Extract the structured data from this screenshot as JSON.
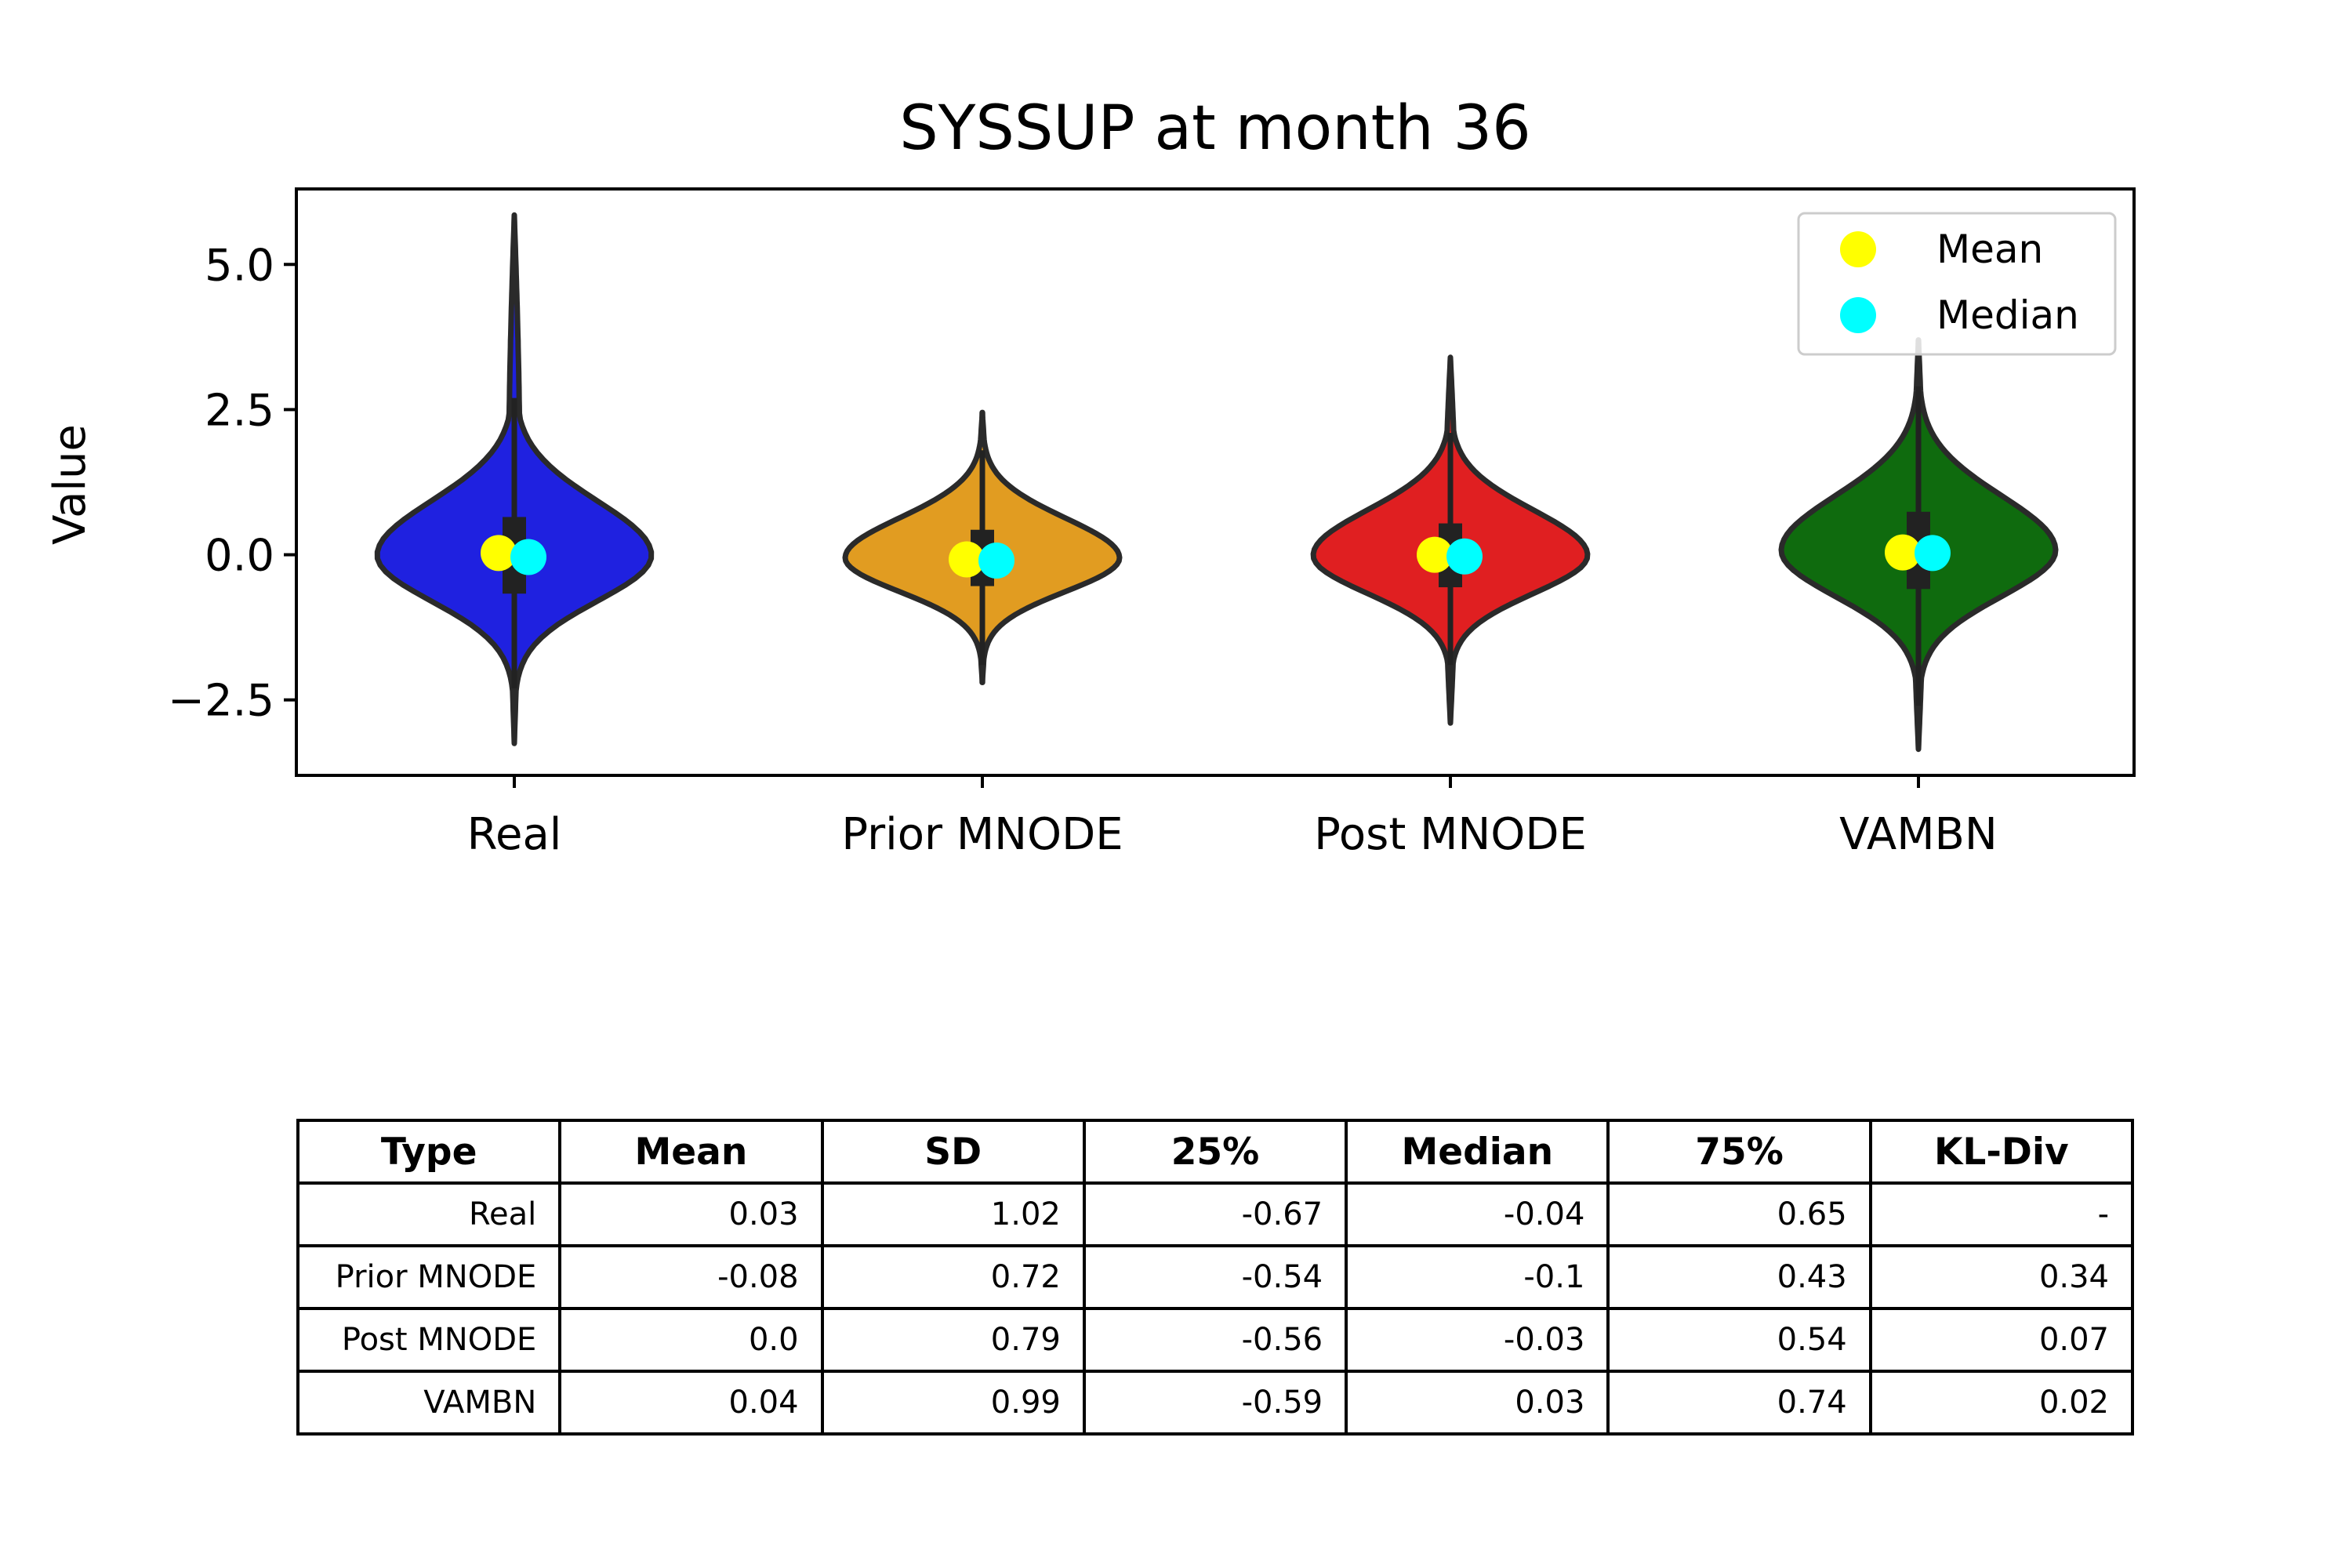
{
  "chart_data": {
    "type": "violin",
    "title": "SYSSUP at month 36",
    "xlabel": "",
    "ylabel": "Value",
    "ylim": [
      -3.8,
      6.3
    ],
    "yticks": [
      5.0,
      2.5,
      0.0,
      -2.5
    ],
    "ytick_labels": [
      "5.0",
      "2.5",
      "0.0",
      "−2.5"
    ],
    "categories": [
      "Real",
      "Prior MNODE",
      "Post MNODE",
      "VAMBN"
    ],
    "series": [
      {
        "category": "Real",
        "color": "#1f21e0",
        "min": -3.25,
        "max": 5.85,
        "q1": -0.67,
        "q3": 0.65,
        "mean": 0.03,
        "median": -0.04,
        "whisker_low": -2.3,
        "whisker_high": 2.7
      },
      {
        "category": "Prior MNODE",
        "color": "#e19c21",
        "min": -2.2,
        "max": 2.45,
        "q1": -0.54,
        "q3": 0.43,
        "mean": -0.08,
        "median": -0.1,
        "whisker_low": -1.9,
        "whisker_high": 1.8
      },
      {
        "category": "Post MNODE",
        "color": "#e01f21",
        "min": -2.9,
        "max": 3.4,
        "q1": -0.56,
        "q3": 0.54,
        "mean": 0.0,
        "median": -0.03,
        "whisker_low": -1.9,
        "whisker_high": 2.1
      },
      {
        "category": "VAMBN",
        "color": "#0f6b0e",
        "min": -3.35,
        "max": 3.7,
        "q1": -0.59,
        "q3": 0.74,
        "mean": 0.04,
        "median": 0.03,
        "whisker_low": -2.6,
        "whisker_high": 2.9
      }
    ],
    "legend": {
      "position": "top-right",
      "entries": [
        {
          "label": "Mean",
          "color": "#ffff00"
        },
        {
          "label": "Median",
          "color": "#00ffff"
        }
      ]
    },
    "grid": false
  },
  "table": {
    "headers": [
      "Type",
      "Mean",
      "SD",
      "25%",
      "Median",
      "75%",
      "KL-Div"
    ],
    "rows": [
      [
        "Real",
        "0.03",
        "1.02",
        "-0.67",
        "-0.04",
        "0.65",
        "-"
      ],
      [
        "Prior MNODE",
        "-0.08",
        "0.72",
        "-0.54",
        "-0.1",
        "0.43",
        "0.34"
      ],
      [
        "Post MNODE",
        "0.0",
        "0.79",
        "-0.56",
        "-0.03",
        "0.54",
        "0.07"
      ],
      [
        "VAMBN",
        "0.04",
        "0.99",
        "-0.59",
        "0.03",
        "0.74",
        "0.02"
      ]
    ]
  }
}
